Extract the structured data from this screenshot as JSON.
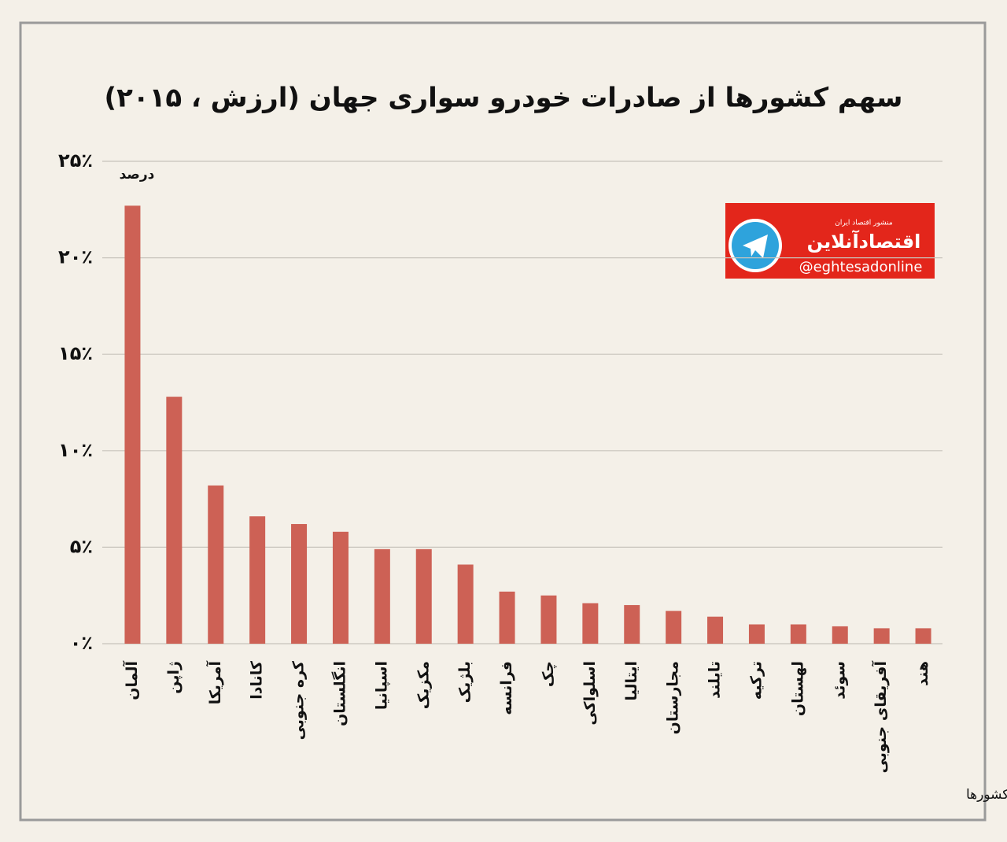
{
  "chart_data": {
    "type": "bar",
    "title": "سهم کشورها از صادرات خودرو سواری جهان (ارزش ، ۲۰۱۵)",
    "y_unit_label": "درصد",
    "source": "تحلیل و استنتاج: احسان سلطانی بر اساس داده های کشورها",
    "logo": {
      "name": "اقتصادآنلاین",
      "tagline": "منشور اقتصاد ایران",
      "handle": "@eghtesadonline"
    },
    "categories": [
      "آلمان",
      "ژاپن",
      "آمریکا",
      "کانادا",
      "کره جنوبی",
      "انگلستان",
      "اسپانیا",
      "مکزیک",
      "بلژیک",
      "فرانسه",
      "چک",
      "اسلواکی",
      "ایتالیا",
      "مجارستان",
      "تایلند",
      "ترکیه",
      "لهستان",
      "سوئد",
      "آفریقای جنوبی",
      "هند"
    ],
    "values": [
      22.7,
      12.8,
      8.2,
      6.6,
      6.2,
      5.8,
      4.9,
      4.9,
      4.1,
      2.7,
      2.5,
      2.1,
      2.0,
      1.7,
      1.4,
      1.0,
      1.0,
      0.9,
      0.8,
      0.8
    ],
    "color": "#cd6155",
    "ylim": [
      0,
      25
    ],
    "yticks": [
      {
        "value": 0,
        "label": "۰٪"
      },
      {
        "value": 5,
        "label": "۵٪"
      },
      {
        "value": 10,
        "label": "۱۰٪"
      },
      {
        "value": 15,
        "label": "۱۵٪"
      },
      {
        "value": 20,
        "label": "۲۰٪"
      },
      {
        "value": 25,
        "label": "۲۵٪"
      }
    ],
    "grid": true
  }
}
